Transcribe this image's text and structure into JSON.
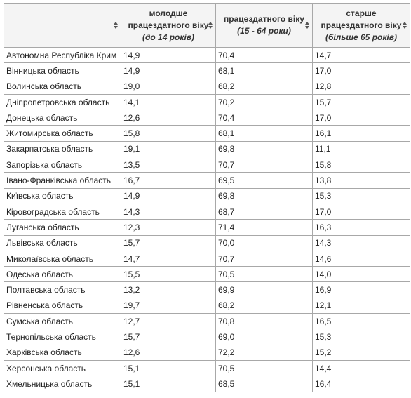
{
  "table": {
    "header": [
      [],
      [
        "молодше",
        "працездатного віку",
        "(до 14 років)"
      ],
      [
        "працездатного віку",
        "(15 - 64 роки)"
      ],
      [
        "старше",
        "працездатного віку",
        "(більше 65 років)"
      ]
    ],
    "rows": [
      [
        "Автономна Республіка Крим",
        "14,9",
        "70,4",
        "14,7"
      ],
      [
        "Вінницька область",
        "14,9",
        "68,1",
        "17,0"
      ],
      [
        "Волинська область",
        "19,0",
        "68,2",
        "12,8"
      ],
      [
        "Дніпропетровська область",
        "14,1",
        "70,2",
        "15,7"
      ],
      [
        "Донецька область",
        "12,6",
        "70,4",
        "17,0"
      ],
      [
        "Житомирська область",
        "15,8",
        "68,1",
        "16,1"
      ],
      [
        "Закарпатська область",
        "19,1",
        "69,8",
        "11,1"
      ],
      [
        "Запорізька область",
        "13,5",
        "70,7",
        "15,8"
      ],
      [
        "Івано-Франківська область",
        "16,7",
        "69,5",
        "13,8"
      ],
      [
        "Київська область",
        "14,9",
        "69,8",
        "15,3"
      ],
      [
        "Кіровоградська область",
        "14,3",
        "68,7",
        "17,0"
      ],
      [
        "Луганська область",
        "12,3",
        "71,4",
        "16,3"
      ],
      [
        "Львівська область",
        "15,7",
        "70,0",
        "14,3"
      ],
      [
        "Миколаївська область",
        "14,7",
        "70,7",
        "14,6"
      ],
      [
        "Одеська область",
        "15,5",
        "70,5",
        "14,0"
      ],
      [
        "Полтавська область",
        "13,2",
        "69,9",
        "16,9"
      ],
      [
        "Рівненська область",
        "19,7",
        "68,2",
        "12,1"
      ],
      [
        "Сумська область",
        "12,7",
        "70,8",
        "16,5"
      ],
      [
        "Тернопільська область",
        "15,7",
        "69,0",
        "15,3"
      ],
      [
        "Харківська область",
        "12,6",
        "72,2",
        "15,2"
      ],
      [
        "Херсонська область",
        "15,1",
        "70,5",
        "14,4"
      ],
      [
        "Хмельницька область",
        "15,1",
        "68,5",
        "16,4"
      ]
    ]
  }
}
